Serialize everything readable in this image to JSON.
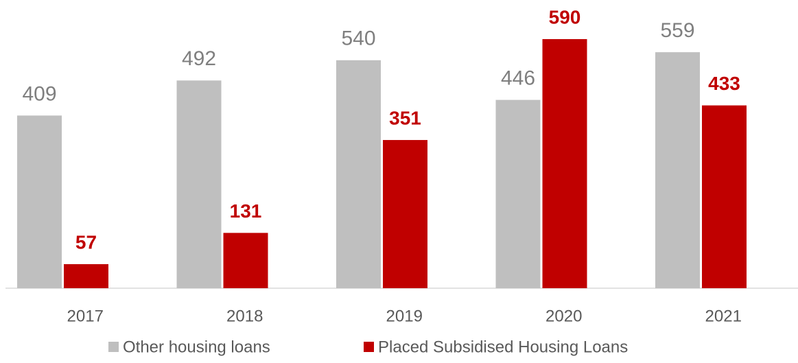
{
  "chart_data": {
    "type": "bar",
    "categories": [
      "2017",
      "2018",
      "2019",
      "2020",
      "2021"
    ],
    "series": [
      {
        "name": "Other housing loans",
        "color": "#bfbfbf",
        "values": [
          409,
          492,
          540,
          446,
          559
        ]
      },
      {
        "name": "Placed Subsidised Housing Loans",
        "color": "#c00000",
        "values": [
          57,
          131,
          351,
          590,
          433
        ]
      }
    ],
    "legend": "bottom"
  }
}
